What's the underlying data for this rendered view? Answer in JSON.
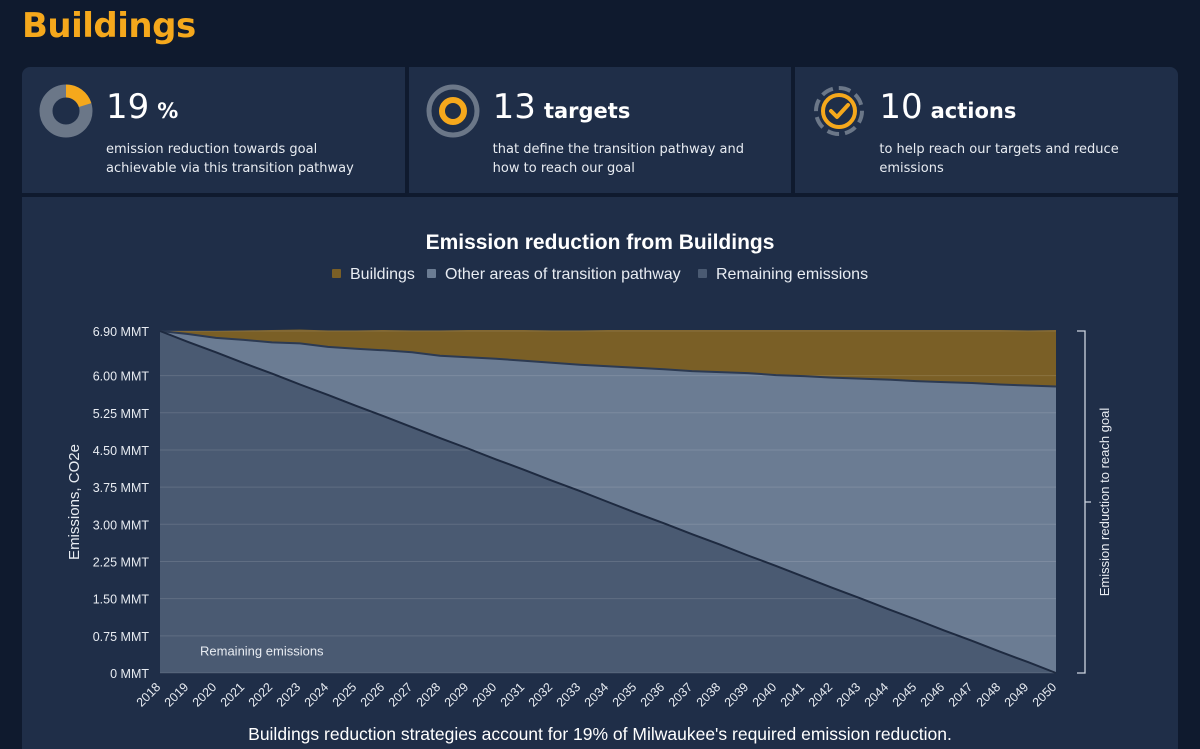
{
  "page": {
    "title": "Buildings"
  },
  "stats": [
    {
      "number": "19",
      "unit": "%",
      "desc": "emission reduction towards goal achievable via this transition pathway",
      "icon": "donut-progress-icon"
    },
    {
      "number": "13",
      "unit": "targets",
      "desc": "that define the transition pathway and how to reach our goal",
      "icon": "target-icon"
    },
    {
      "number": "10",
      "unit": "actions",
      "desc": "to help reach our targets and reduce emissions",
      "icon": "checkmark-circle-icon"
    }
  ],
  "colors": {
    "accent": "#f5a81c",
    "buildings": "#7a5f26",
    "other": "#6b7c93",
    "remaining": "#4a5a72"
  },
  "chart_data": {
    "type": "area",
    "title": "Emission reduction from Buildings",
    "ylabel": "Emissions, CO2e",
    "right_label": "Emission reduction to reach goal",
    "area_label": "Remaining emissions",
    "footer": "Buildings reduction strategies account for 19% of Milwaukee's required emission reduction.",
    "legend": [
      "Buildings",
      "Other areas of transition pathway",
      "Remaining emissions"
    ],
    "ylim": [
      0,
      6.9
    ],
    "yticks": [
      0,
      0.75,
      1.5,
      2.25,
      3.0,
      3.75,
      4.5,
      5.25,
      6.0,
      6.9
    ],
    "ytick_labels": [
      "0 MMT",
      "0.75 MMT",
      "1.50 MMT",
      "2.25 MMT",
      "3.00 MMT",
      "3.75 MMT",
      "4.50 MMT",
      "5.25 MMT",
      "6.00 MMT",
      "6.90 MMT"
    ],
    "x": [
      2018,
      2019,
      2020,
      2021,
      2022,
      2023,
      2024,
      2025,
      2026,
      2027,
      2028,
      2029,
      2030,
      2031,
      2032,
      2033,
      2034,
      2035,
      2036,
      2037,
      2038,
      2039,
      2040,
      2041,
      2042,
      2043,
      2044,
      2045,
      2046,
      2047,
      2048,
      2049,
      2050
    ],
    "series": [
      {
        "name": "Remaining emissions",
        "values": [
          6.9,
          6.68,
          6.47,
          6.25,
          6.04,
          5.82,
          5.61,
          5.39,
          5.18,
          4.96,
          4.74,
          4.53,
          4.31,
          4.1,
          3.88,
          3.67,
          3.45,
          3.23,
          3.02,
          2.8,
          2.59,
          2.37,
          2.16,
          1.94,
          1.72,
          1.51,
          1.29,
          1.08,
          0.86,
          0.65,
          0.43,
          0.22,
          0.0
        ]
      },
      {
        "name": "Other areas of transition pathway",
        "values": [
          6.9,
          6.84,
          6.76,
          6.72,
          6.67,
          6.65,
          6.58,
          6.54,
          6.51,
          6.47,
          6.4,
          6.37,
          6.34,
          6.3,
          6.26,
          6.22,
          6.19,
          6.16,
          6.13,
          6.09,
          6.07,
          6.05,
          6.01,
          5.99,
          5.96,
          5.94,
          5.92,
          5.89,
          5.87,
          5.85,
          5.82,
          5.8,
          5.78
        ]
      },
      {
        "name": "Buildings",
        "values": [
          6.9,
          6.9,
          6.9,
          6.91,
          6.92,
          6.93,
          6.91,
          6.91,
          6.92,
          6.91,
          6.91,
          6.92,
          6.92,
          6.92,
          6.91,
          6.91,
          6.92,
          6.92,
          6.92,
          6.92,
          6.92,
          6.92,
          6.92,
          6.92,
          6.92,
          6.92,
          6.92,
          6.92,
          6.92,
          6.92,
          6.92,
          6.91,
          6.92
        ]
      }
    ]
  }
}
